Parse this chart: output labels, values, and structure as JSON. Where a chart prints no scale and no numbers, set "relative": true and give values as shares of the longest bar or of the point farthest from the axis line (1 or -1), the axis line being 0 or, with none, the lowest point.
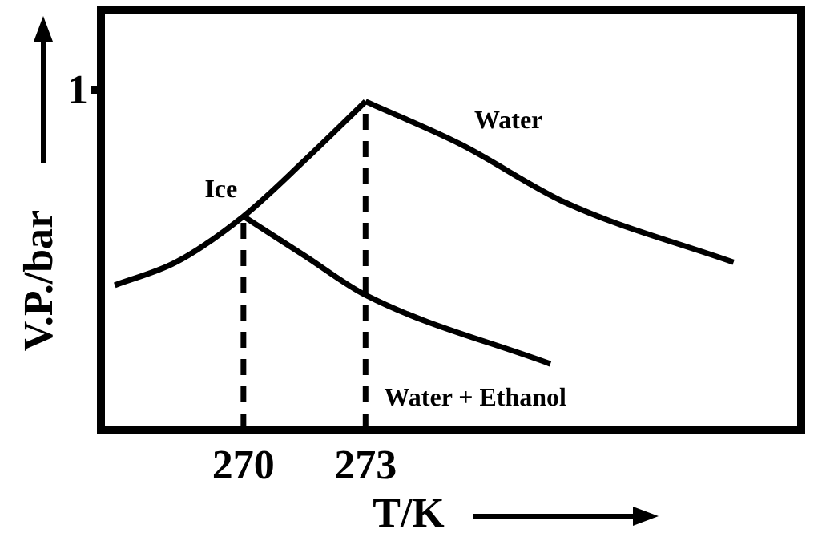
{
  "chart_data": {
    "type": "line",
    "xlabel": "T/K",
    "ylabel": "V.P./bar",
    "relative": true,
    "xlim": [
      266.5,
      283.7
    ],
    "xticks": [
      270,
      273
    ],
    "series": [
      {
        "name": "Ice",
        "color": "#000000",
        "x": [
          266.84,
          268.34,
          270,
          271.5,
          273
        ],
        "values": [
          0.44,
          0.51,
          0.65,
          0.82,
          1
        ]
      },
      {
        "name": "Water",
        "color": "#000000",
        "x": [
          273,
          275.33,
          277.94,
          282.04
        ],
        "values": [
          1,
          0.87,
          0.69,
          0.51
        ]
      },
      {
        "name": "Water + Ethanol",
        "color": "#000000",
        "x": [
          270,
          271.5,
          273,
          277.54
        ],
        "values": [
          0.65,
          0.53,
          0.41,
          0.2
        ]
      }
    ],
    "ref_lines": [
      {
        "axis": "x",
        "value": 270,
        "line_style": "dashed"
      },
      {
        "axis": "x",
        "value": 273,
        "line_style": "dashed"
      }
    ],
    "annotations": [
      "1"
    ],
    "grid": false,
    "legend": false,
    "marker": "none",
    "line_style": "solid"
  }
}
